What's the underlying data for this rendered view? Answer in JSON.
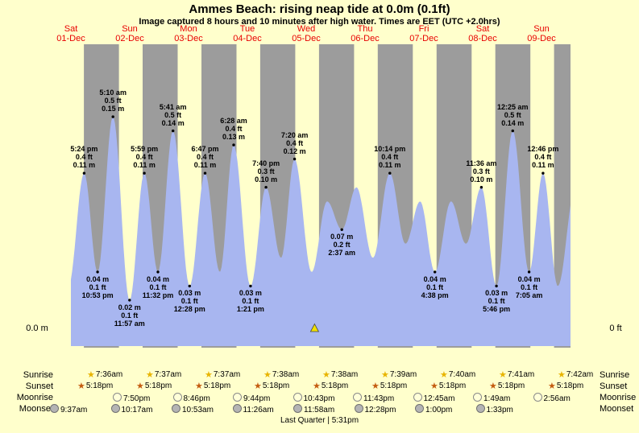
{
  "title": "Ammes Beach: rising  neap tide at 0.0m (0.1ft)",
  "subtitle": "Image captured 8 hours and 10 minutes after high water. Times are EET (UTC +2.0hrs)",
  "axis": {
    "left": "0.0 m",
    "right": "0 ft"
  },
  "days": [
    {
      "name": "Sat",
      "date": "01-Dec"
    },
    {
      "name": "Sun",
      "date": "02-Dec"
    },
    {
      "name": "Mon",
      "date": "03-Dec"
    },
    {
      "name": "Tue",
      "date": "04-Dec"
    },
    {
      "name": "Wed",
      "date": "05-Dec"
    },
    {
      "name": "Thu",
      "date": "06-Dec"
    },
    {
      "name": "Fri",
      "date": "07-Dec"
    },
    {
      "name": "Sat",
      "date": "08-Dec"
    },
    {
      "name": "Sun",
      "date": "09-Dec"
    }
  ],
  "chart_data": {
    "type": "area",
    "series_label": "tide height",
    "x_axis": {
      "start_day": "Sat 01-Dec",
      "end_day": "Sun 09-Dec",
      "origin": "01-Dec 12:00",
      "span_hours": 204
    },
    "y_axis": {
      "zero_left": "0.0 m",
      "zero_right": "0 ft"
    },
    "tide_events": [
      {
        "type": "high",
        "day": "Sat 01-Dec",
        "time": "5:24 pm",
        "ft": "0.4 ft",
        "m": "0.11 m",
        "t_hours": 5.4,
        "height_m": 0.11
      },
      {
        "type": "low",
        "day": "Sat 01-Dec",
        "time": "10:53 pm",
        "ft": "0.1 ft",
        "m": "0.04 m",
        "t_hours": 10.88,
        "height_m": 0.04
      },
      {
        "type": "high",
        "day": "Sun 02-Dec",
        "time": "5:10 am",
        "ft": "0.5 ft",
        "m": "0.15 m",
        "t_hours": 17.17,
        "height_m": 0.15
      },
      {
        "type": "low",
        "day": "Sun 02-Dec",
        "time": "11:57 am",
        "ft": "0.1 ft",
        "m": "0.02 m",
        "t_hours": 23.95,
        "height_m": 0.02
      },
      {
        "type": "high",
        "day": "Sun 02-Dec",
        "time": "5:59 pm",
        "ft": "0.4 ft",
        "m": "0.11 m",
        "t_hours": 29.98,
        "height_m": 0.11
      },
      {
        "type": "low",
        "day": "Sun 02-Dec",
        "time": "11:32 pm",
        "ft": "0.1 ft",
        "m": "0.04 m",
        "t_hours": 35.53,
        "height_m": 0.04
      },
      {
        "type": "high",
        "day": "Mon 03-Dec",
        "time": "5:41 am",
        "ft": "0.5 ft",
        "m": "0.14 m",
        "t_hours": 41.68,
        "height_m": 0.14
      },
      {
        "type": "low",
        "day": "Mon 03-Dec",
        "time": "12:28 pm",
        "ft": "0.1 ft",
        "m": "0.03 m",
        "t_hours": 48.47,
        "height_m": 0.03
      },
      {
        "type": "high",
        "day": "Mon 03-Dec",
        "time": "6:47 pm",
        "ft": "0.4 ft",
        "m": "0.11 m",
        "t_hours": 54.78,
        "height_m": 0.11
      },
      {
        "type": "high",
        "day": "Tue 04-Dec",
        "time": "6:28 am",
        "ft": "0.4 ft",
        "m": "0.13 m",
        "t_hours": 66.47,
        "height_m": 0.13
      },
      {
        "type": "low",
        "day": "Tue 04-Dec",
        "time": "1:21 pm",
        "ft": "0.1 ft",
        "m": "0.03 m",
        "t_hours": 73.35,
        "height_m": 0.03
      },
      {
        "type": "high",
        "day": "Tue 04-Dec",
        "time": "7:40 pm",
        "ft": "0.3 ft",
        "m": "0.10 m",
        "t_hours": 79.67,
        "height_m": 0.1
      },
      {
        "type": "high",
        "day": "Wed 05-Dec",
        "time": "7:20 am",
        "ft": "0.4 ft",
        "m": "0.12 m",
        "t_hours": 91.33,
        "height_m": 0.12
      },
      {
        "type": "low",
        "day": "Thu 06-Dec",
        "time": "2:37 am",
        "ft": "0.2 ft",
        "m": "0.07 m",
        "t_hours": 110.62,
        "height_m": 0.07
      },
      {
        "type": "high",
        "day": "Thu 06-Dec",
        "time": "10:14 pm",
        "ft": "0.4 ft",
        "m": "0.11 m",
        "t_hours": 130.23,
        "height_m": 0.11
      },
      {
        "type": "low",
        "day": "Fri 07-Dec",
        "time": "4:38 pm",
        "ft": "0.1 ft",
        "m": "0.04 m",
        "t_hours": 148.63,
        "height_m": 0.04
      },
      {
        "type": "high",
        "day": "Sat 08-Dec",
        "time": "11:36 am",
        "ft": "0.3 ft",
        "m": "0.10 m",
        "t_hours": 167.6,
        "height_m": 0.1
      },
      {
        "type": "low",
        "day": "Sat 08-Dec",
        "time": "5:46 pm",
        "ft": "0.1 ft",
        "m": "0.03 m",
        "t_hours": 173.77,
        "height_m": 0.03
      },
      {
        "type": "high",
        "day": "Sun 09-Dec",
        "time": "12:25 am",
        "ft": "0.5 ft",
        "m": "0.14 m",
        "t_hours": 180.42,
        "height_m": 0.14
      },
      {
        "type": "low",
        "day": "Sun 09-Dec",
        "time": "7:05 am",
        "ft": "0.1 ft",
        "m": "0.04 m",
        "t_hours": 187.08,
        "height_m": 0.04
      },
      {
        "type": "high",
        "day": "Sun 09-Dec",
        "time": "12:46 pm",
        "ft": "0.4 ft",
        "m": "0.11 m",
        "t_hours": 192.77,
        "height_m": 0.11
      }
    ],
    "shape_points": [
      {
        "t_hours": -1.0,
        "height_m": 0.03
      },
      {
        "t_hours": 60.8,
        "height_m": 0.04
      },
      {
        "t_hours": 85.8,
        "height_m": 0.05
      },
      {
        "t_hours": 98.3,
        "height_m": 0.04
      },
      {
        "t_hours": 104.6,
        "height_m": 0.09
      },
      {
        "t_hours": 116.6,
        "height_m": 0.1
      },
      {
        "t_hours": 123.3,
        "height_m": 0.05
      },
      {
        "t_hours": 136.6,
        "height_m": 0.06
      },
      {
        "t_hours": 142.6,
        "height_m": 0.09
      },
      {
        "t_hours": 155.2,
        "height_m": 0.09
      },
      {
        "t_hours": 161.3,
        "height_m": 0.06
      },
      {
        "t_hours": 198.8,
        "height_m": 0.03
      },
      {
        "t_hours": 206.0,
        "height_m": 0.1
      }
    ],
    "current_time_marker": {
      "t_hours": 99.5,
      "shape": "yellow-triangle"
    }
  },
  "sun_moon": {
    "row_labels": [
      "Sunrise",
      "Sunset",
      "Moonrise",
      "Moonset"
    ],
    "sunrise": [
      "7:36am",
      "7:37am",
      "7:37am",
      "7:38am",
      "7:38am",
      "7:39am",
      "7:40am",
      "7:41am",
      "7:42am"
    ],
    "sunset": [
      "5:18pm",
      "5:18pm",
      "5:18pm",
      "5:18pm",
      "5:18pm",
      "5:18pm",
      "5:18pm",
      "5:18pm",
      "5:18pm"
    ],
    "moonrise": [
      "7:50pm",
      "8:46pm",
      "9:44pm",
      "10:43pm",
      "11:43pm",
      "12:45am",
      "1:49am",
      "2:56am"
    ],
    "moonset": [
      "9:37am",
      "10:17am",
      "10:53am",
      "11:26am",
      "11:58am",
      "12:28pm",
      "1:00pm",
      "1:33pm"
    ],
    "footer": "Last Quarter | 5:31pm"
  },
  "colors": {
    "day_bg": "#ffffcc",
    "night_band": "#9c9c9c",
    "tide_fill": "#a8b6f0",
    "date_red": "#e80000",
    "marker_yellow": "#f0e000"
  }
}
